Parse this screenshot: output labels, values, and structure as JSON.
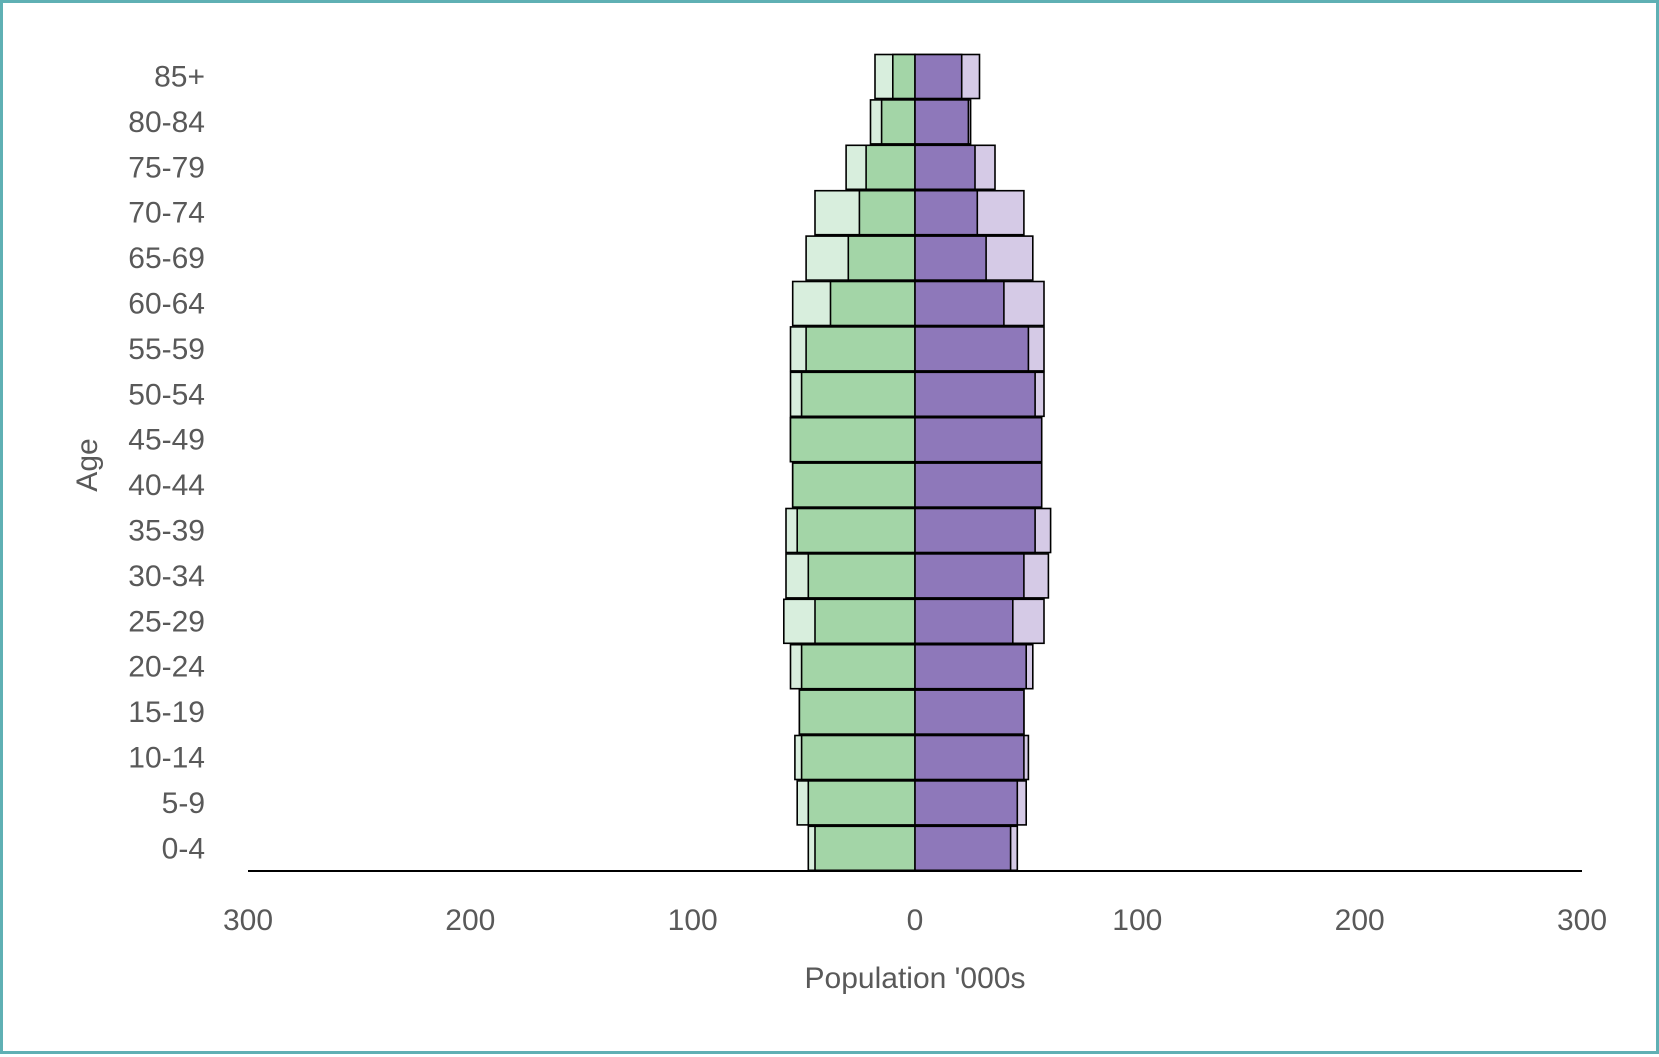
{
  "chart_data": {
    "type": "bar",
    "orientation": "horizontal",
    "layout": "population-pyramid",
    "xlabel": "Population '000s",
    "ylabel": "Age",
    "xlim": [
      -300,
      300
    ],
    "xticks": [
      -300,
      -200,
      -100,
      0,
      100,
      200,
      300
    ],
    "xtick_labels": [
      "300",
      "200",
      "100",
      "0",
      "100",
      "200",
      "300"
    ],
    "categories": [
      "0-4",
      "5-9",
      "10-14",
      "15-19",
      "20-24",
      "25-29",
      "30-34",
      "35-39",
      "40-44",
      "45-49",
      "50-54",
      "55-59",
      "60-64",
      "65-69",
      "70-74",
      "75-79",
      "80-84",
      "85+"
    ],
    "series": [
      {
        "side": "left",
        "layer": "outer",
        "color": "#d8eedd",
        "values": [
          48,
          53,
          54,
          52,
          56,
          59,
          58,
          58,
          55,
          56,
          56,
          56,
          55,
          49,
          45,
          31,
          20,
          18
        ]
      },
      {
        "side": "left",
        "layer": "inner",
        "color": "#a3d5a7",
        "values": [
          45,
          48,
          51,
          52,
          51,
          45,
          48,
          53,
          55,
          56,
          51,
          49,
          38,
          30,
          25,
          22,
          15,
          10
        ]
      },
      {
        "side": "right",
        "layer": "outer",
        "color": "#d5cae6",
        "values": [
          46,
          50,
          51,
          49,
          53,
          58,
          60,
          61,
          57,
          57,
          58,
          58,
          58,
          53,
          49,
          36,
          25,
          29
        ]
      },
      {
        "side": "right",
        "layer": "inner",
        "color": "#8e78ba",
        "values": [
          43,
          46,
          49,
          49,
          50,
          44,
          49,
          54,
          57,
          57,
          54,
          51,
          40,
          32,
          28,
          27,
          24,
          21
        ]
      }
    ],
    "grid": false,
    "legend": "none"
  }
}
